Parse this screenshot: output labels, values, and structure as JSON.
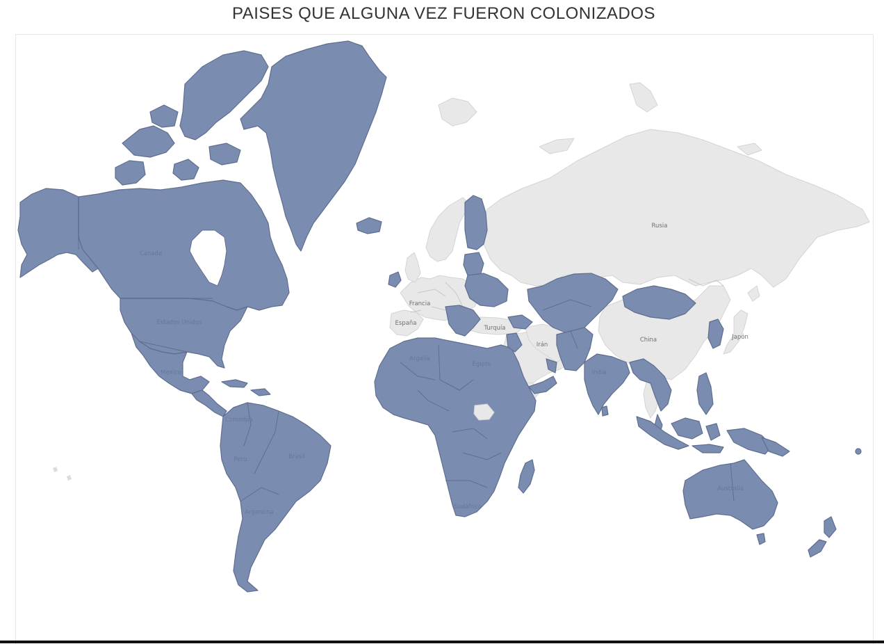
{
  "title": "PAISES QUE ALGUNA VEZ FUERON COLONIZADOS",
  "colors": {
    "colonized": "#7a8db1",
    "not_colonized": "#e8e8e8",
    "title_text": "#333333"
  },
  "map": {
    "labels": {
      "canada": "Canada",
      "usa": "Estados Unidos",
      "mexico": "Mexico",
      "colombia": "Colombia",
      "peru": "Peru",
      "brasil": "Brasil",
      "argentina": "Argentina",
      "francia": "Francia",
      "espana": "España",
      "turquia": "Turquía",
      "iran": "Irán",
      "rusia": "Rusia",
      "china": "China",
      "japon": "Japón",
      "india": "India",
      "argelia": "Argelia",
      "egipto": "Egipto",
      "sudafrica": "Sudáfrica",
      "australia": "Australia"
    }
  }
}
